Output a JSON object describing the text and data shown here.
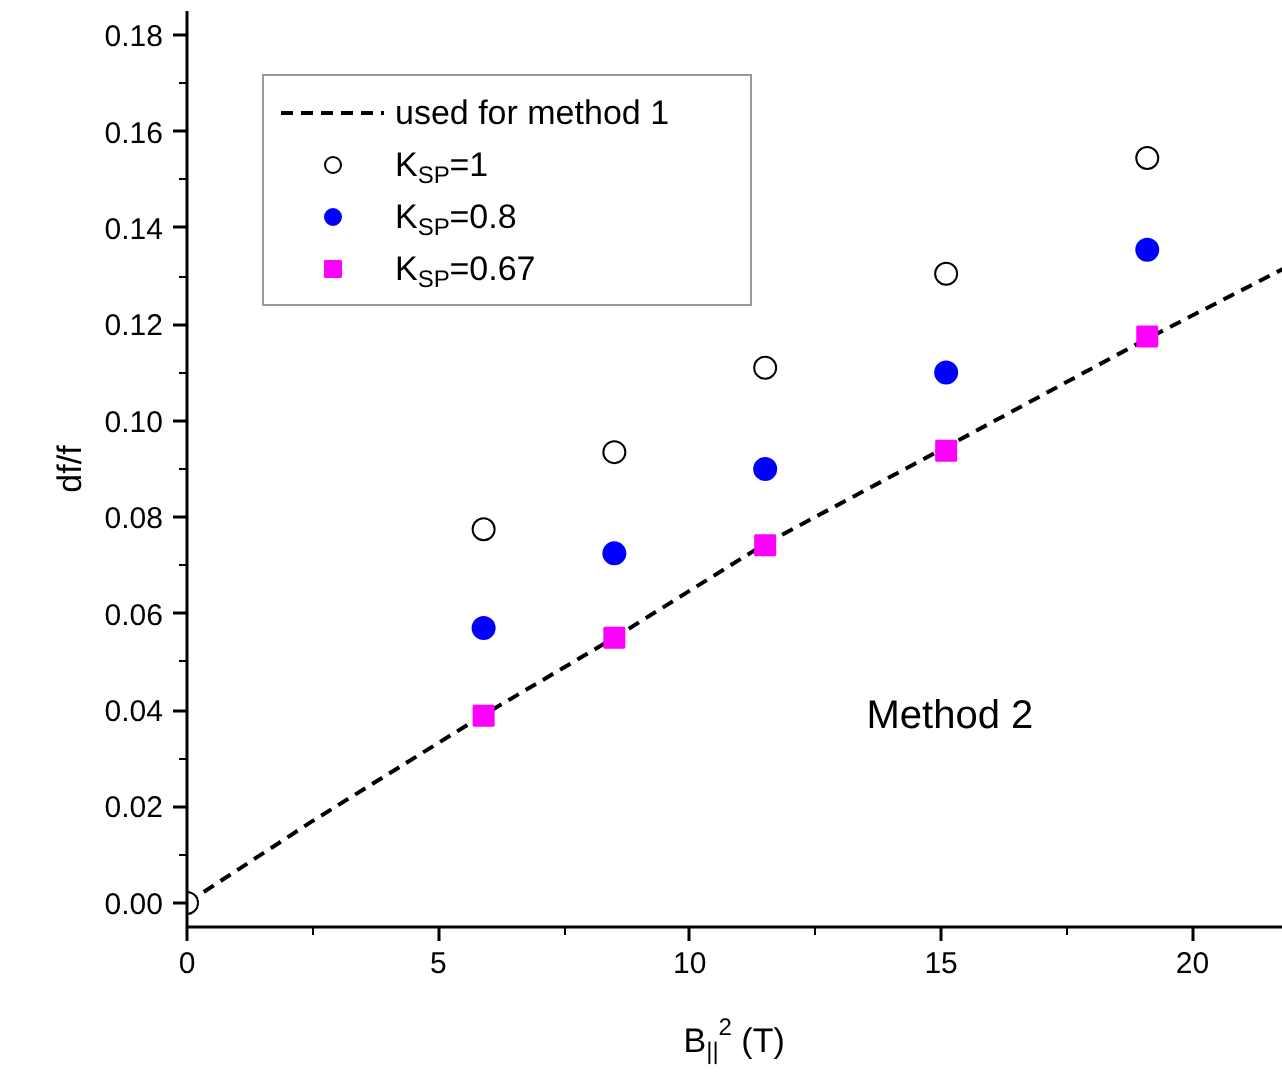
{
  "chart_data": {
    "type": "scatter",
    "xlabel": "B$_{||}$$^{2}$ (T)",
    "ylabel": "df/f",
    "xlim": [
      0,
      21.8
    ],
    "ylim": [
      -0.005,
      0.185
    ],
    "xticks": [
      0,
      5,
      10,
      15,
      20
    ],
    "yticks": [
      {
        "value": 0,
        "label": "0.00"
      },
      {
        "value": 0.02,
        "label": "0.02"
      },
      {
        "value": 0.04,
        "label": "0.04"
      },
      {
        "value": 0.06,
        "label": "0.06"
      },
      {
        "value": 0.08,
        "label": "0.08"
      },
      {
        "value": 0.1,
        "label": "0.10"
      },
      {
        "value": 0.12,
        "label": "0.12"
      },
      {
        "value": 0.14,
        "label": "0.14"
      },
      {
        "value": 0.16,
        "label": "0.16"
      },
      {
        "value": 0.18,
        "label": "0.18"
      }
    ],
    "grid": false,
    "legend": "top left",
    "series": [
      {
        "name": "used for method 1",
        "type": "line",
        "line_style": "dashed",
        "marker": "none",
        "color": "#000000",
        "x": [
          0,
          2.5,
          5.9,
          8.5,
          11.5,
          15,
          19,
          21.8
        ],
        "values": [
          0,
          0.017,
          0.039,
          0.055,
          0.0745,
          0.094,
          0.1165,
          0.1315
        ]
      },
      {
        "name": "K$_{SP}$=1",
        "type": "scatter",
        "marker": "circle",
        "color": "#ffffff",
        "x": [
          0,
          5.9,
          8.5,
          11.5,
          15.1,
          19.1
        ],
        "values": [
          0,
          0.0775,
          0.0935,
          0.111,
          0.1305,
          0.1545
        ]
      },
      {
        "name": "K$_{SP}$=0.8",
        "type": "scatter",
        "marker": "circle",
        "color": "#0000ff",
        "x": [
          5.9,
          8.5,
          11.5,
          15.1,
          19.1
        ],
        "values": [
          0.057,
          0.0725,
          0.09,
          0.11,
          0.1355
        ]
      },
      {
        "name": "K$_{SP}$=0.67",
        "type": "scatter",
        "marker": "square",
        "color": "#ff00ff",
        "x": [
          5.9,
          8.5,
          11.5,
          15.1,
          19.1
        ],
        "values": [
          0.0388,
          0.055,
          0.0742,
          0.0938,
          0.1175
        ]
      }
    ],
    "annotations": [
      "Method 2"
    ]
  }
}
